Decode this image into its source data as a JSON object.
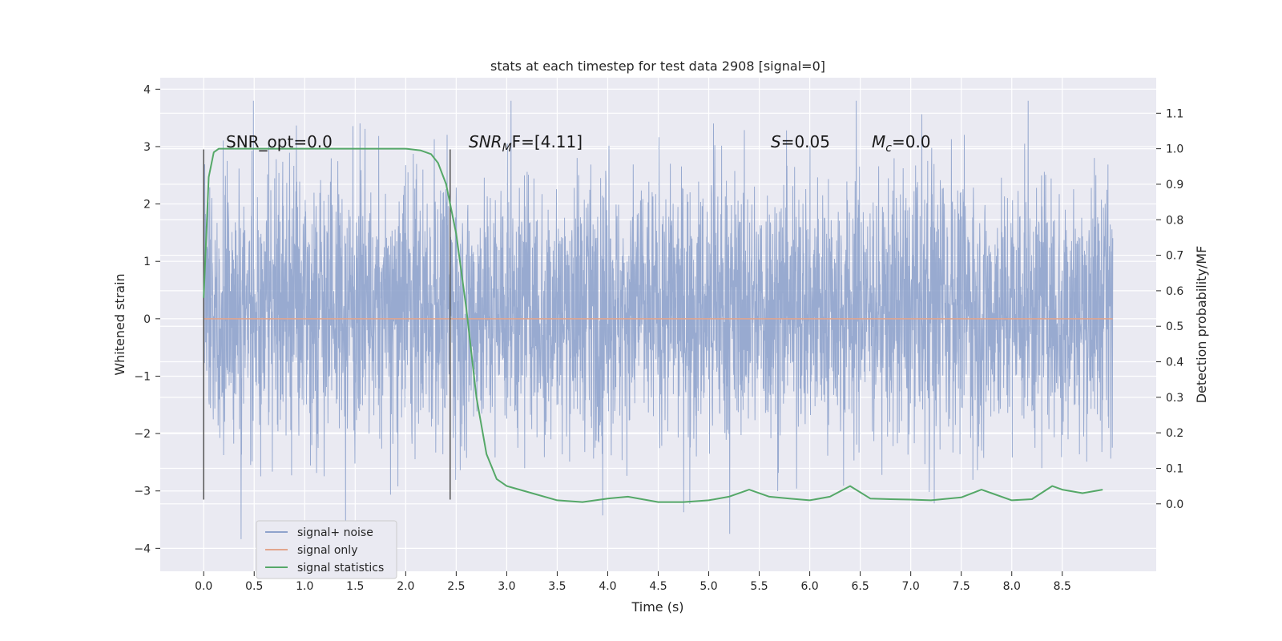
{
  "chart_data": {
    "type": "line",
    "title": "stats at each timestep for test data 2908 [signal=0]",
    "xlabel": "Time (s)",
    "ylabel": "Whitened strain",
    "y2label": "Detection probability/MF",
    "xlim": [
      -0.43,
      9.43
    ],
    "ylim": [
      -4.4,
      4.2
    ],
    "y2lim": [
      -0.19,
      1.2
    ],
    "xticks": [
      "0.0",
      "0.5",
      "1.0",
      "1.5",
      "2.0",
      "2.5",
      "3.0",
      "3.5",
      "4.0",
      "4.5",
      "5.0",
      "5.5",
      "6.0",
      "6.5",
      "7.0",
      "7.5",
      "8.0",
      "8.5"
    ],
    "yticks": [
      "4",
      "3",
      "2",
      "1",
      "0",
      "−1",
      "−2",
      "−3",
      "−4"
    ],
    "y2ticks": [
      "0.0",
      "0.1",
      "0.2",
      "0.3",
      "0.4",
      "0.5",
      "0.6",
      "0.7",
      "0.8",
      "0.9",
      "1.0",
      "1.1"
    ],
    "grid": true,
    "legend_position": "lower-left",
    "annotations": {
      "snr_opt": "SNR_opt=0.0",
      "snr_mf_base": "SNR",
      "snr_mf_sub": "M",
      "snr_mf_rest": "F=[4.11]",
      "s_var": "S",
      "s_rest": "=0.05",
      "mc_var": "M",
      "mc_sub": "c",
      "mc_rest": "=0.0"
    },
    "vlines": [
      0.0,
      2.44
    ],
    "series": [
      {
        "name": "signal+ noise",
        "color": "#8fa3cc",
        "x_range": [
          0.0,
          9.0
        ],
        "typical_range": [
          -1.3,
          1.7
        ],
        "extremes": {
          "max": 3.8,
          "min": -4.0
        }
      },
      {
        "name": "signal only",
        "color": "#e2a58d",
        "x": [
          0.0,
          9.0
        ],
        "y": [
          0.0,
          0.0
        ]
      },
      {
        "name": "signal statistics",
        "color": "#55a868",
        "axis": "right",
        "x": [
          0.0,
          0.05,
          0.1,
          0.15,
          0.2,
          0.3,
          0.5,
          1.0,
          1.5,
          2.0,
          2.15,
          2.25,
          2.32,
          2.4,
          2.5,
          2.6,
          2.7,
          2.8,
          2.9,
          3.0,
          3.25,
          3.5,
          3.75,
          4.0,
          4.2,
          4.5,
          4.75,
          5.0,
          5.2,
          5.4,
          5.6,
          5.8,
          6.0,
          6.2,
          6.4,
          6.6,
          6.8,
          7.0,
          7.2,
          7.5,
          7.7,
          7.8,
          8.0,
          8.2,
          8.4,
          8.5,
          8.7,
          8.9
        ],
        "y": [
          0.58,
          0.92,
          0.99,
          1.0,
          1.0,
          1.0,
          1.0,
          1.0,
          1.0,
          1.0,
          0.995,
          0.985,
          0.96,
          0.9,
          0.76,
          0.55,
          0.3,
          0.14,
          0.07,
          0.05,
          0.03,
          0.01,
          0.005,
          0.015,
          0.02,
          0.005,
          0.005,
          0.01,
          0.02,
          0.04,
          0.02,
          0.015,
          0.01,
          0.02,
          0.05,
          0.015,
          0.013,
          0.012,
          0.01,
          0.018,
          0.04,
          0.03,
          0.01,
          0.013,
          0.05,
          0.04,
          0.03,
          0.04
        ]
      }
    ]
  }
}
